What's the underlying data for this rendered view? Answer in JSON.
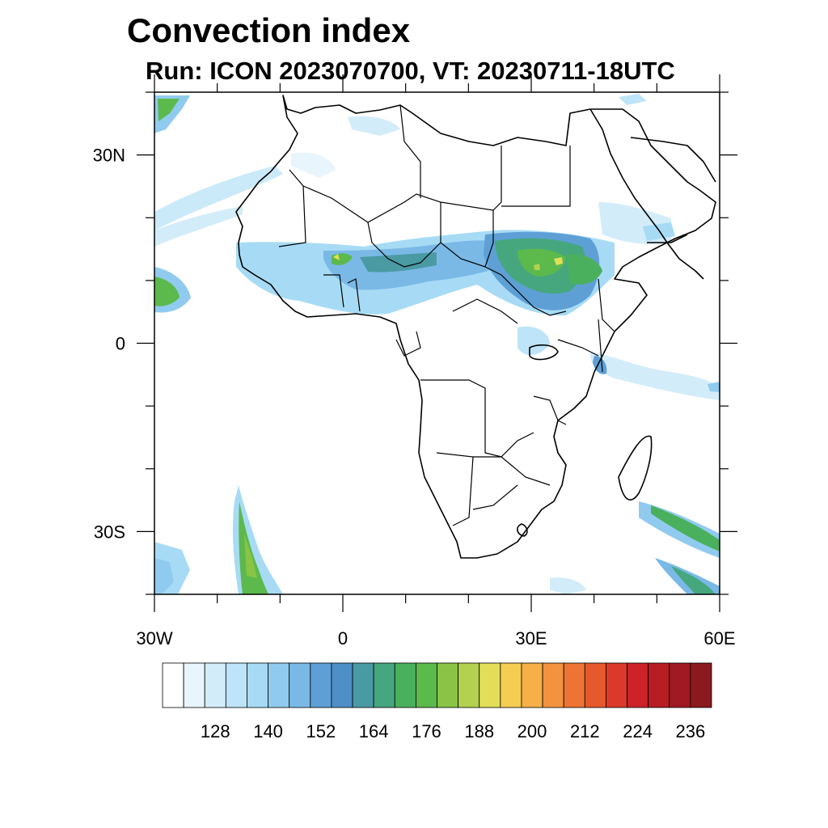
{
  "title": "Convection index",
  "subtitle": "Run: ICON 2023070700,  VT: 20230711-18UTC",
  "axes": {
    "x_ticks": [
      {
        "label": "30W",
        "value": -30
      },
      {
        "label": "0",
        "value": 0
      },
      {
        "label": "30E",
        "value": 30
      },
      {
        "label": "60E",
        "value": 60
      }
    ],
    "y_ticks": [
      {
        "label": "30N",
        "value": 30
      },
      {
        "label": "0",
        "value": 0
      },
      {
        "label": "30S",
        "value": -30
      }
    ],
    "lon_range": [
      -30,
      60
    ],
    "lat_range": [
      -40,
      40
    ]
  },
  "colorbar": {
    "labels": [
      "128",
      "140",
      "152",
      "164",
      "176",
      "188",
      "200",
      "212",
      "224",
      "236"
    ],
    "colors": [
      "#ffffff",
      "#e9f5fc",
      "#d3ecf9",
      "#bde4f8",
      "#a7dbf5",
      "#90cbef",
      "#7ab9e6",
      "#5e9fd6",
      "#4d8fc6",
      "#4a9aa4",
      "#46a77f",
      "#4ab05e",
      "#5cb94c",
      "#89c447",
      "#b3d04f",
      "#e2de59",
      "#f5cd52",
      "#f5b048",
      "#f39340",
      "#ed7434",
      "#e6592d",
      "#db3a2a",
      "#cc2228",
      "#b81c25",
      "#a11922",
      "#8a1a1e"
    ]
  },
  "colors": {
    "frame": "#000000",
    "coast": "#000000"
  }
}
